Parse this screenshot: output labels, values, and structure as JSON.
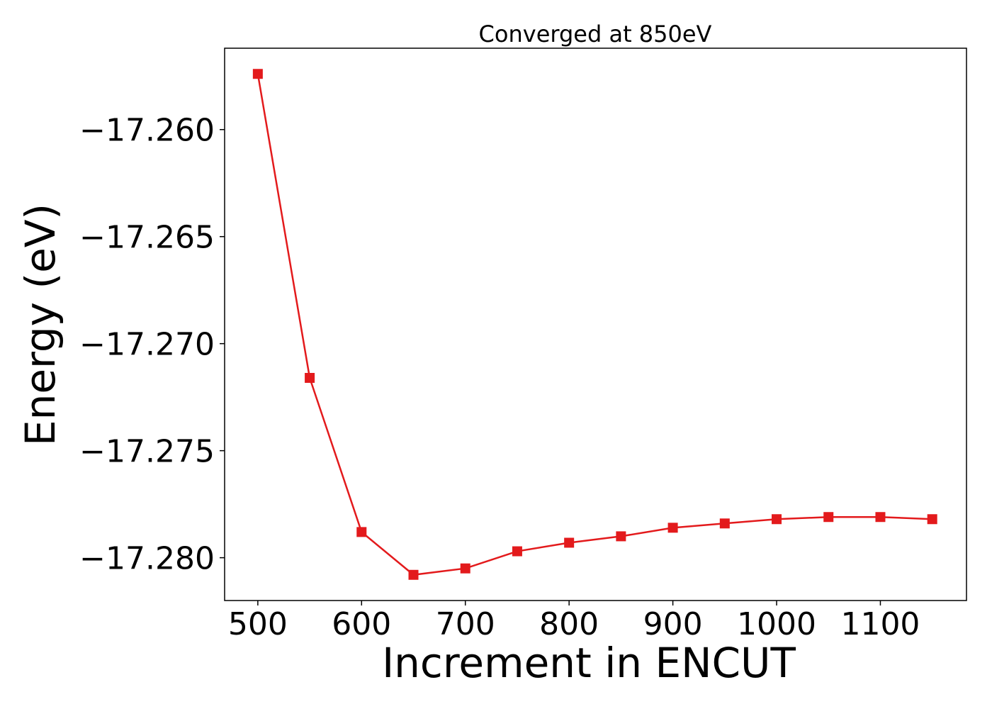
{
  "chart_data": {
    "type": "line",
    "title": "Converged at 850eV",
    "xlabel": "Increment in ENCUT",
    "ylabel": "Energy (eV)",
    "x": [
      500,
      550,
      600,
      650,
      700,
      750,
      800,
      850,
      900,
      950,
      1000,
      1050,
      1100,
      1150
    ],
    "series": [
      {
        "values": [
          -17.2574,
          -17.2716,
          -17.2788,
          -17.2808,
          -17.2805,
          -17.2797,
          -17.2793,
          -17.279,
          -17.2786,
          -17.2784,
          -17.2782,
          -17.2781,
          -17.2781,
          -17.2782
        ],
        "color": "#e31a1c",
        "marker": "square"
      }
    ],
    "xlim": [
      468,
      1183
    ],
    "ylim": [
      -17.282,
      -17.2562
    ],
    "xticks": [
      500,
      600,
      700,
      800,
      900,
      1000,
      1100
    ],
    "xtick_labels": [
      "500",
      "600",
      "700",
      "800",
      "900",
      "1000",
      "1100"
    ],
    "yticks": [
      -17.26,
      -17.265,
      -17.27,
      -17.275,
      -17.28
    ],
    "ytick_labels": [
      "−17.260",
      "−17.265",
      "−17.270",
      "−17.275",
      "−17.280"
    ],
    "grid": false,
    "legend": "none"
  }
}
